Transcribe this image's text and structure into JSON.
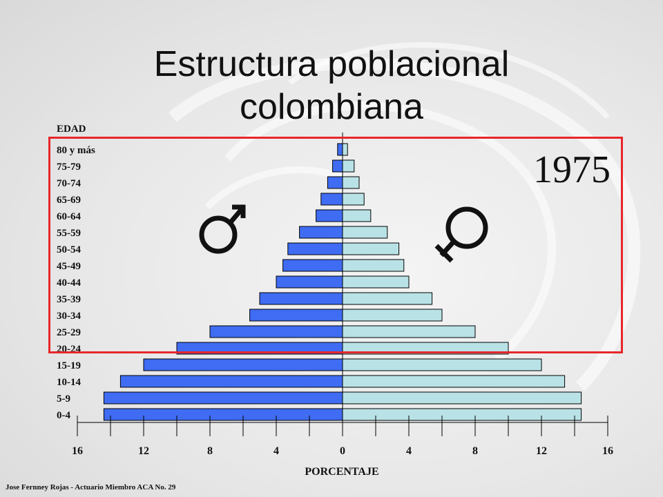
{
  "page": {
    "title_line1": "Estructura poblacional",
    "title_line2": "colombiana",
    "year": "1975",
    "footer": "Jose Fernney Rojas - Actuario Miembro ACA No. 29"
  },
  "colors": {
    "male": "#3f6cf2",
    "female": "#b9e2e6",
    "highlight": "#e8262a"
  },
  "icons": {
    "male": "male-symbol-icon",
    "female": "female-symbol-icon"
  },
  "chart_data": {
    "type": "bar",
    "orientation": "horizontal",
    "ylabel": "EDAD",
    "xlabel": "PORCENTAJE",
    "xlim": [
      -16,
      16
    ],
    "x_ticks": [
      16,
      12,
      8,
      4,
      0,
      4,
      8,
      12,
      16
    ],
    "categories": [
      "80 y más",
      "75-79",
      "70-74",
      "65-69",
      "60-64",
      "55-59",
      "50-54",
      "45-49",
      "40-44",
      "35-39",
      "30-34",
      "25-29",
      "20-24",
      "15-19",
      "10-14",
      "5-9",
      "0-4"
    ],
    "series": [
      {
        "values": [
          0.3,
          0.6,
          0.9,
          1.3,
          1.6,
          2.6,
          3.3,
          3.6,
          4.0,
          5.0,
          5.6,
          8.0,
          10.0,
          12.0,
          13.4,
          14.4,
          14.4
        ]
      },
      {
        "values": [
          0.3,
          0.7,
          1.0,
          1.3,
          1.7,
          2.7,
          3.4,
          3.7,
          4.0,
          5.4,
          6.0,
          8.0,
          10.0,
          12.0,
          13.4,
          14.4,
          14.4
        ]
      }
    ],
    "grid": false
  }
}
